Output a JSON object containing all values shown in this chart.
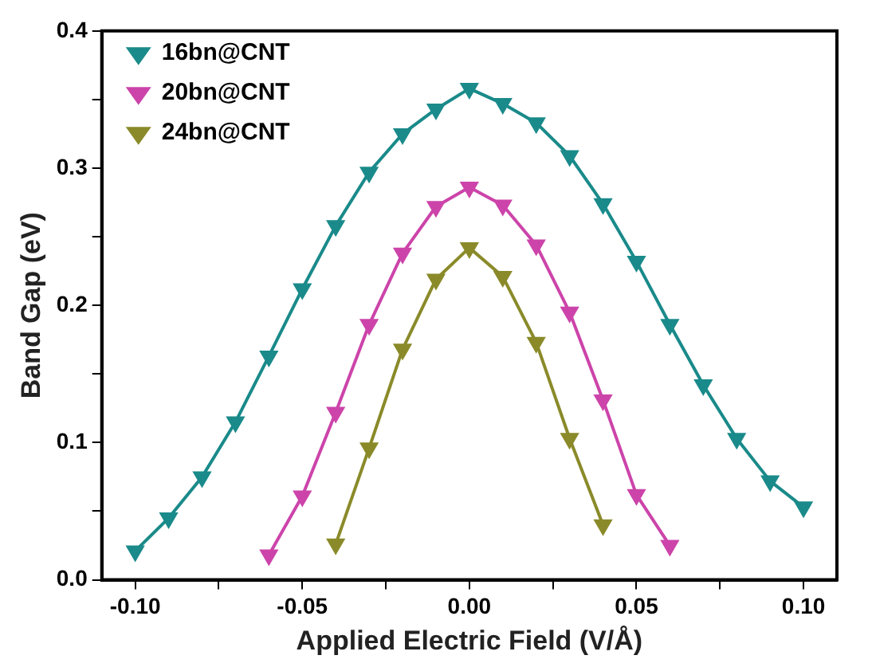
{
  "chart_data": {
    "type": "line",
    "xlabel": "Applied Electric Field (V/Å)",
    "ylabel": "Band Gap (eV)",
    "xlim": [
      -0.11,
      0.11
    ],
    "xticks": [
      {
        "value": -0.1,
        "label": "-0.10"
      },
      {
        "value": -0.075,
        "label": null
      },
      {
        "value": -0.05,
        "label": "-0.05"
      },
      {
        "value": -0.025,
        "label": null
      },
      {
        "value": 0,
        "label": "0.00"
      },
      {
        "value": 0.025,
        "label": null
      },
      {
        "value": 0.05,
        "label": "0.05"
      },
      {
        "value": 0.075,
        "label": null
      },
      {
        "value": 0.1,
        "label": "0.10"
      }
    ],
    "ylim": [
      0,
      0.4
    ],
    "yticks": [
      {
        "value": 0,
        "label": "0.0"
      },
      {
        "value": 0.05,
        "label": null
      },
      {
        "value": 0.1,
        "label": "0.1"
      },
      {
        "value": 0.15,
        "label": null
      },
      {
        "value": 0.2,
        "label": "0.2"
      },
      {
        "value": 0.25,
        "label": null
      },
      {
        "value": 0.3,
        "label": "0.3"
      },
      {
        "value": 0.35,
        "label": null
      },
      {
        "value": 0.4,
        "label": "0.4"
      }
    ],
    "legend": "top left",
    "marker": "triangle",
    "line_style": "solid",
    "grid": false,
    "series": [
      {
        "name": "16bn@CNT",
        "color": "#1a8a8a",
        "x": [
          -0.1,
          -0.09,
          -0.08,
          -0.07,
          -0.06,
          -0.05,
          -0.04,
          -0.03,
          -0.02,
          -0.01,
          0,
          0.01,
          0.02,
          0.03,
          0.04,
          0.05,
          0.06,
          0.07,
          0.08,
          0.09,
          0.1
        ],
        "values": [
          0.021,
          0.045,
          0.075,
          0.115,
          0.163,
          0.212,
          0.258,
          0.297,
          0.325,
          0.343,
          0.358,
          0.347,
          0.333,
          0.309,
          0.274,
          0.232,
          0.186,
          0.142,
          0.103,
          0.072,
          0.053
        ]
      },
      {
        "name": "20bn@CNT",
        "color": "#cc44aa",
        "x": [
          -0.06,
          -0.05,
          -0.04,
          -0.03,
          -0.02,
          -0.01,
          0,
          0.01,
          0.02,
          0.03,
          0.04,
          0.05,
          0.06
        ],
        "values": [
          0.018,
          0.061,
          0.122,
          0.186,
          0.238,
          0.272,
          0.286,
          0.273,
          0.244,
          0.195,
          0.131,
          0.062,
          0.025
        ]
      },
      {
        "name": "24bn@CNT",
        "color": "#8a8a2a",
        "x": [
          -0.04,
          -0.03,
          -0.02,
          -0.01,
          0,
          0.01,
          0.02,
          0.03,
          0.04
        ],
        "values": [
          0.026,
          0.096,
          0.168,
          0.219,
          0.242,
          0.221,
          0.173,
          0.103,
          0.04
        ]
      }
    ]
  }
}
